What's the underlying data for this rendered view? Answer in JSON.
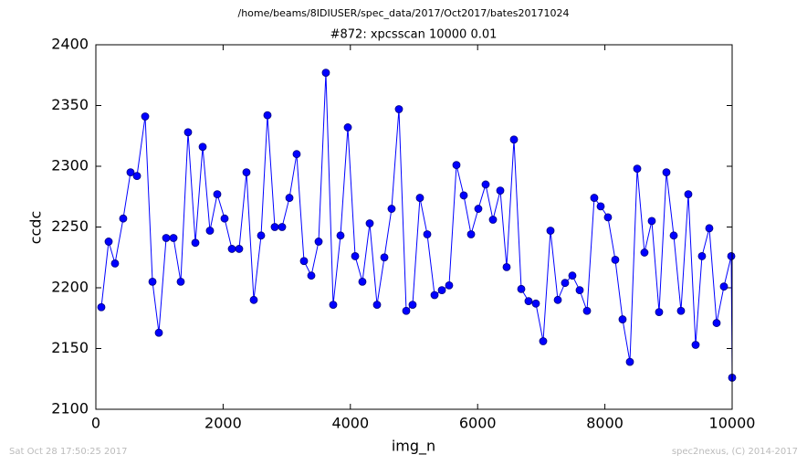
{
  "chart_data": {
    "type": "line",
    "header": "/home/beams/8IDIUSER/spec_data/2017/Oct2017/bates20171024",
    "title": "#872: xpcsscan 10000 0.01",
    "x_label": "img_n",
    "y_label": "ccdc",
    "footer_left": "Sat Oct 28 17:50:25 2017",
    "footer_right": "spec2nexus, (C) 2014-2017",
    "x": [
      86,
      201,
      301,
      430,
      545,
      646,
      775,
      890,
      990,
      1105,
      1220,
      1334,
      1449,
      1564,
      1679,
      1793,
      1908,
      2023,
      2138,
      2252,
      2367,
      2482,
      2597,
      2697,
      2812,
      2927,
      3042,
      3156,
      3271,
      3386,
      3501,
      3615,
      3730,
      3845,
      3960,
      4075,
      4189,
      4304,
      4419,
      4534,
      4648,
      4763,
      4878,
      4978,
      5093,
      5208,
      5323,
      5438,
      5552,
      5667,
      5782,
      5897,
      6011,
      6126,
      6241,
      6356,
      6456,
      6571,
      6686,
      6800,
      6915,
      7030,
      7145,
      7260,
      7374,
      7489,
      7604,
      7719,
      7833,
      7934,
      8048,
      8163,
      8278,
      8393,
      8508,
      8622,
      8737,
      8852,
      8967,
      9082,
      9196,
      9311,
      9426,
      9526,
      9641,
      9756,
      9871,
      9986,
      10000
    ],
    "series": [
      {
        "color": "#0000ff",
        "marker_edge": "#000080",
        "values": [
          2184,
          2238,
          2220,
          2257,
          2295,
          2292,
          2341,
          2205,
          2163,
          2241,
          2241,
          2205,
          2328,
          2237,
          2316,
          2247,
          2277,
          2257,
          2232,
          2232,
          2295,
          2190,
          2243,
          2342,
          2250,
          2250,
          2274,
          2310,
          2222,
          2210,
          2238,
          2377,
          2186,
          2243,
          2332,
          2226,
          2205,
          2253,
          2186,
          2225,
          2265,
          2347,
          2181,
          2186,
          2274,
          2244,
          2194,
          2198,
          2202,
          2301,
          2276,
          2244,
          2265,
          2285,
          2256,
          2280,
          2217,
          2322,
          2199,
          2189,
          2187,
          2156,
          2247,
          2190,
          2204,
          2210,
          2198,
          2181,
          2274,
          2267,
          2258,
          2223,
          2174,
          2139,
          2298,
          2229,
          2255,
          2180,
          2295,
          2243,
          2181,
          2277,
          2153,
          2226,
          2249,
          2171,
          2201,
          2226,
          2126
        ]
      }
    ],
    "xlim": [
      0,
      10000
    ],
    "xticks": [
      0,
      2000,
      4000,
      6000,
      8000,
      10000
    ],
    "ylim": [
      2100,
      2400
    ],
    "yticks": [
      2100,
      2150,
      2200,
      2250,
      2300,
      2350,
      2400
    ],
    "grid": false
  }
}
